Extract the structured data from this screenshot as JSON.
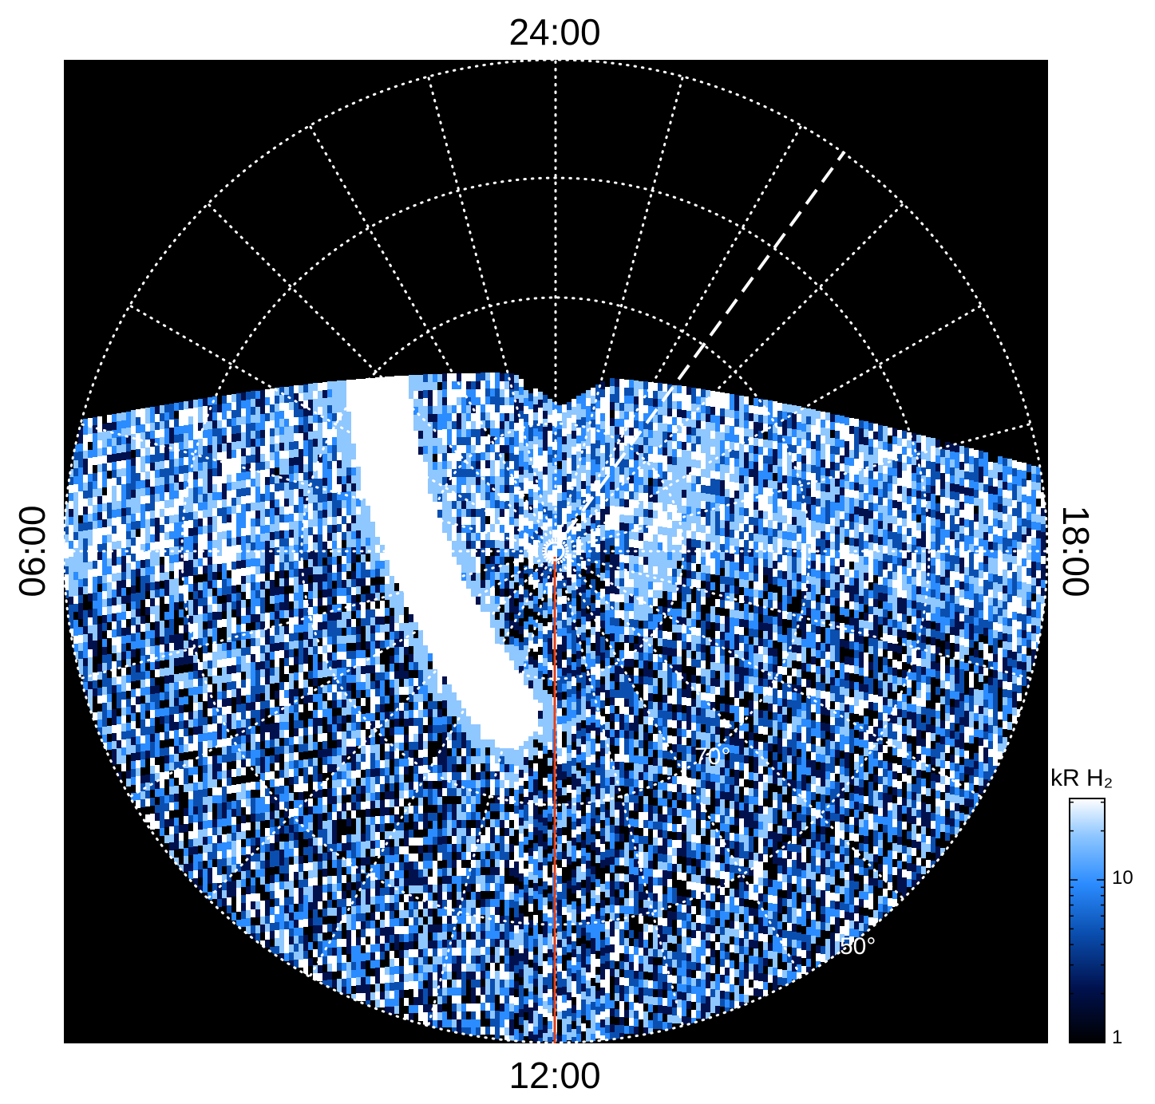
{
  "figure": {
    "local_time_labels": {
      "top": "24:00",
      "bottom": "12:00",
      "left": "06:00",
      "right": "18:00"
    },
    "latitude_labels": [
      "70°",
      "50°"
    ],
    "colorbar": {
      "title": "kR H₂",
      "ticks": [
        "10",
        "1"
      ],
      "scale": "log",
      "colors": [
        "#000000",
        "#00114d",
        "#0a4fb0",
        "#2b8cff",
        "#8fc7ff",
        "#ffffff"
      ]
    },
    "colors": {
      "background": "#000000",
      "grid": "#ffffff",
      "meridian_line": "#e0401a",
      "frame_page": "#ffffff"
    }
  }
}
